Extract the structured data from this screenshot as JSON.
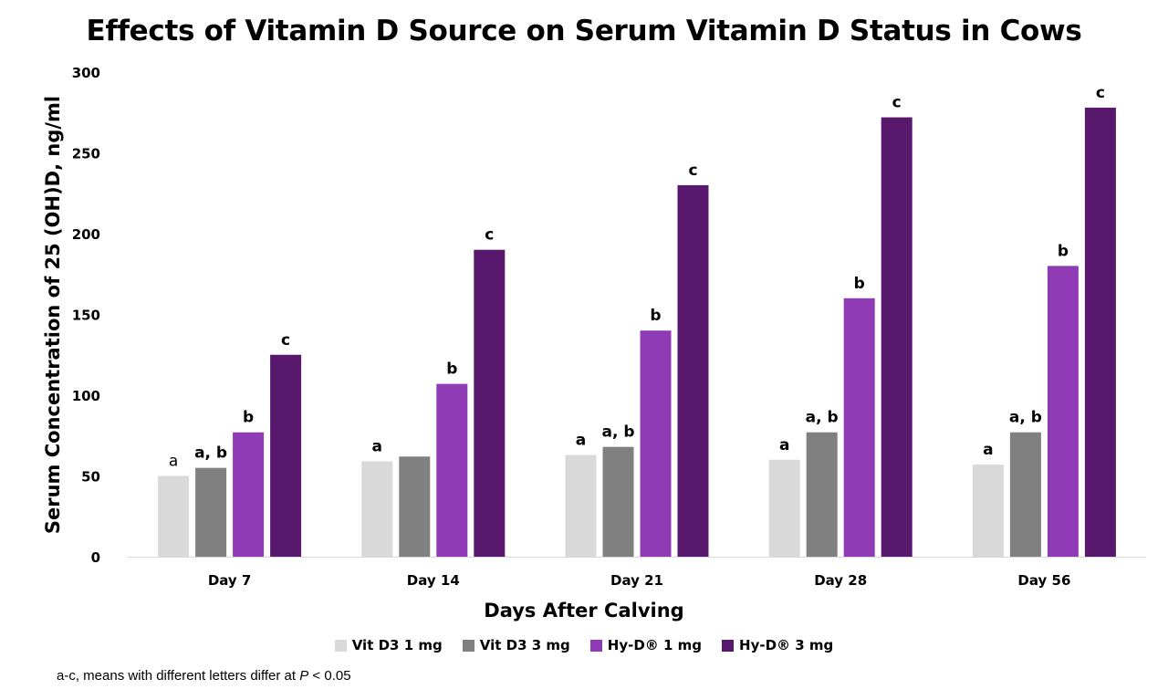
{
  "chart_data": {
    "type": "bar",
    "title": "Effects of Vitamin D Source on Serum Vitamin D Status in Cows",
    "xlabel": "Days After Calving",
    "ylabel": "Serum Concentration of 25 (OH)D, ng/ml",
    "ylim": [
      0,
      300
    ],
    "yticks": [
      0,
      50,
      100,
      150,
      200,
      250,
      300
    ],
    "categories": [
      "Day 7",
      "Day 14",
      "Day 21",
      "Day 28",
      "Day 56"
    ],
    "series": [
      {
        "name": "Vit D3 1 mg",
        "color": "#d9d9d9",
        "values": [
          50,
          59,
          63,
          60,
          57
        ],
        "labels": [
          "a",
          "a",
          "a",
          "a",
          "a"
        ]
      },
      {
        "name": "Vit D3 3 mg",
        "color": "#808080",
        "values": [
          55,
          62,
          68,
          77,
          77
        ],
        "labels": [
          "a, b",
          "",
          "a, b",
          "a, b",
          "a, b"
        ]
      },
      {
        "name": "Hy-D® 1 mg",
        "color": "#8e3bb5",
        "values": [
          77,
          107,
          140,
          160,
          180
        ],
        "labels": [
          "b",
          "b",
          "b",
          "b",
          "b"
        ]
      },
      {
        "name": "Hy-D® 3 mg",
        "color": "#58186e",
        "values": [
          125,
          190,
          230,
          272,
          278
        ],
        "labels": [
          "c",
          "c",
          "c",
          "c",
          "c"
        ]
      }
    ],
    "legend_position": "bottom",
    "grid": false
  },
  "footnote": {
    "prefix": "a-c, means with different letters differ at ",
    "italic": "P",
    "suffix": " < 0.05"
  }
}
